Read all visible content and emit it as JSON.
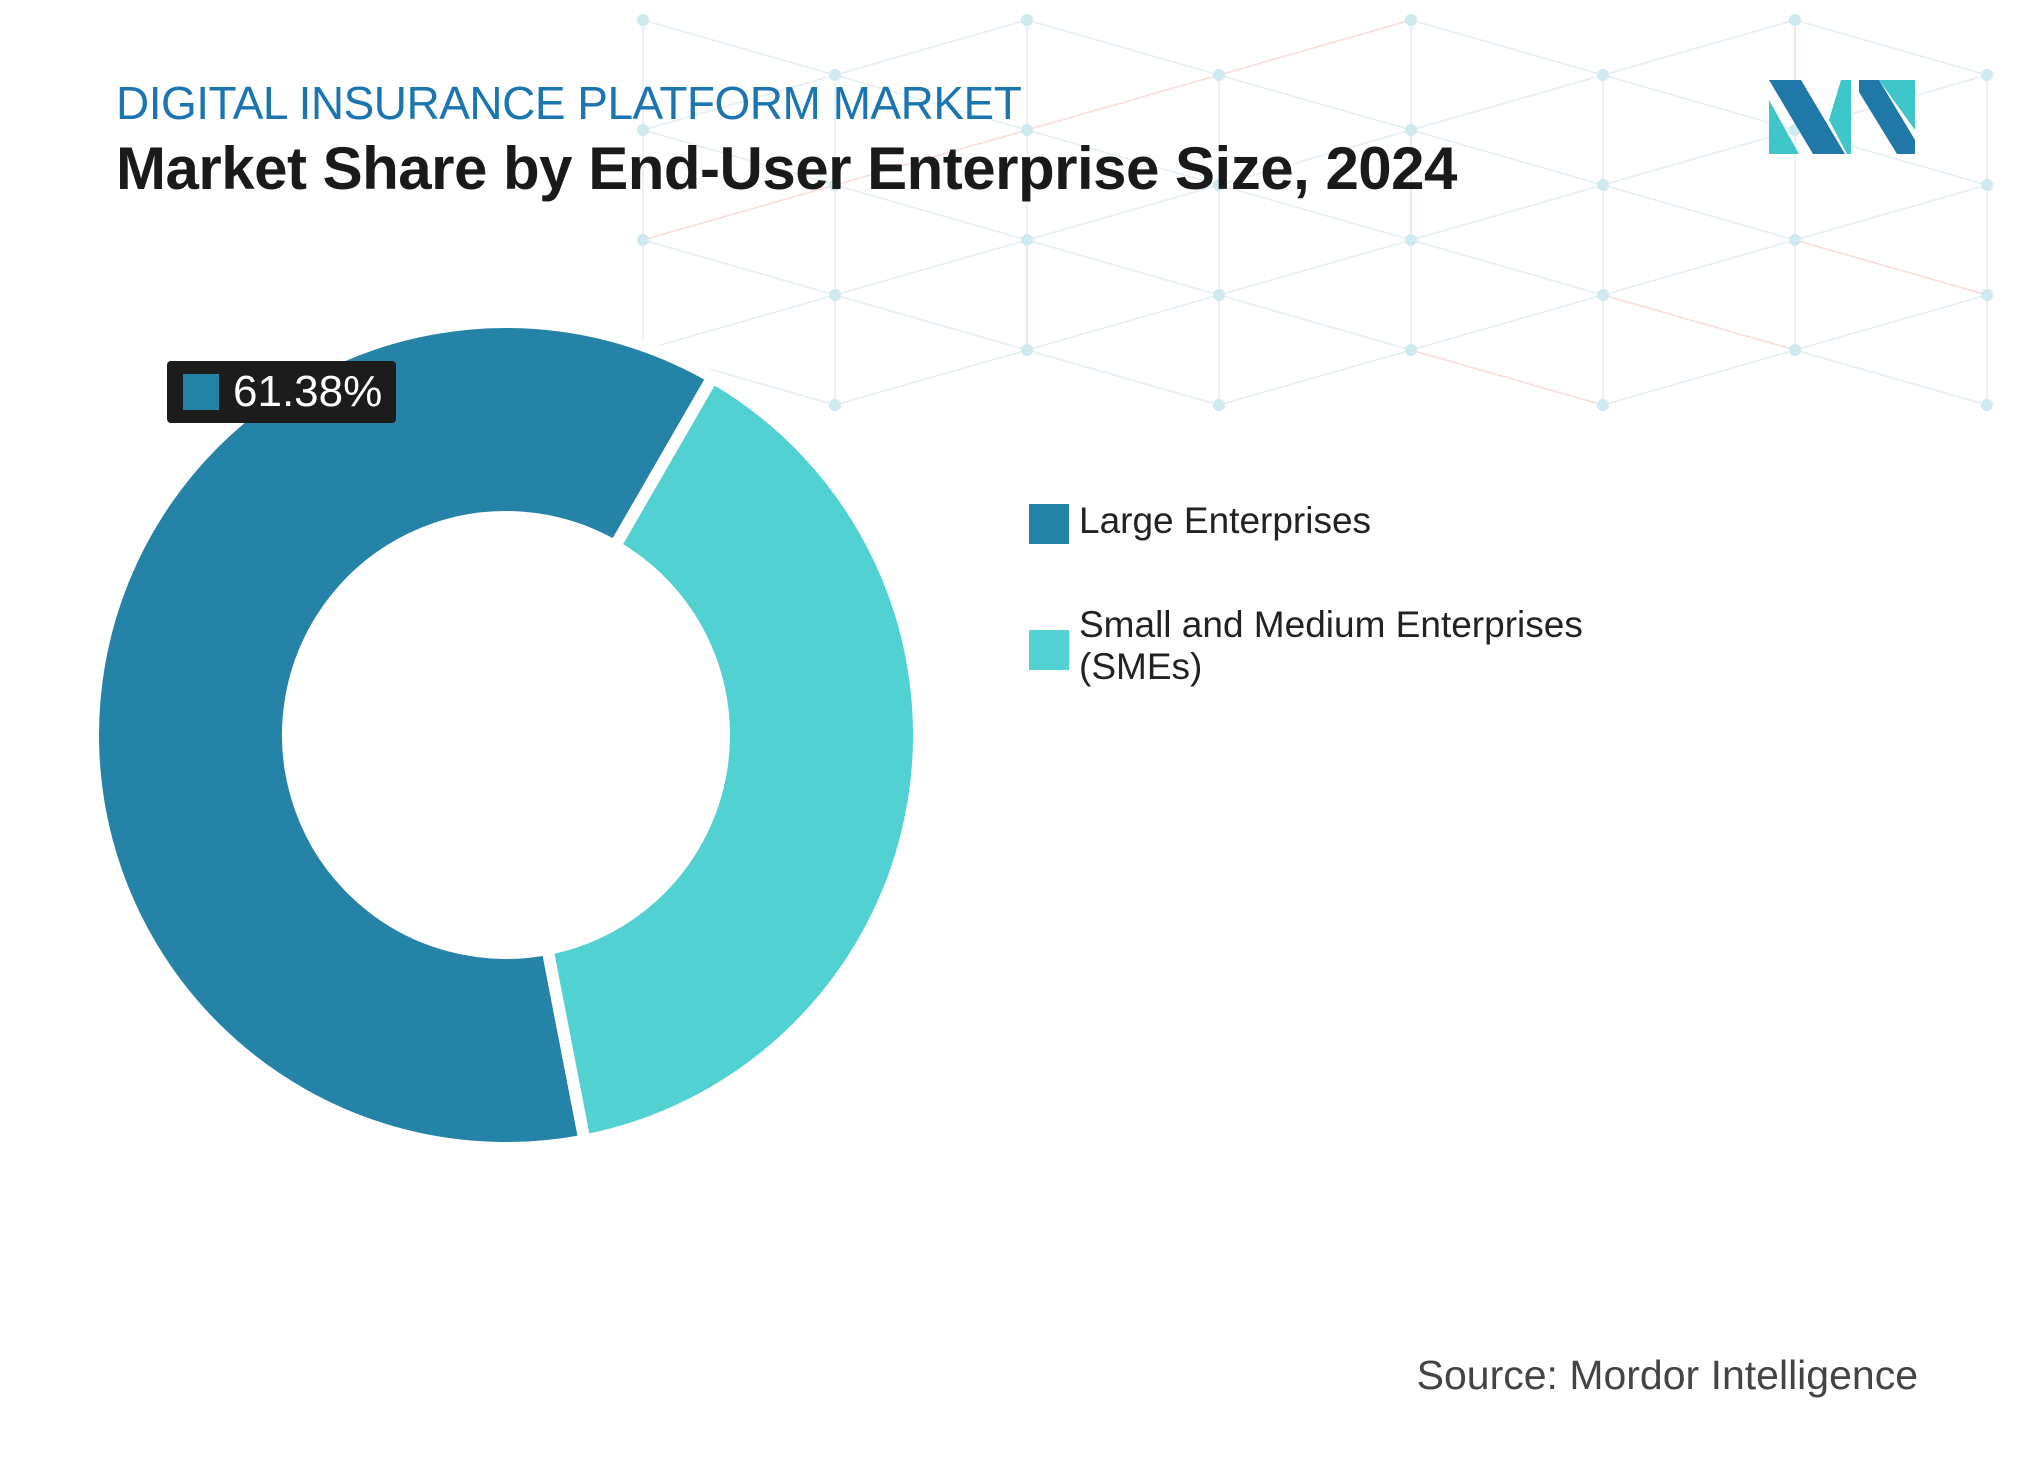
{
  "header": {
    "kicker": "DIGITAL INSURANCE PLATFORM MARKET",
    "title": "Market Share by End-User Enterprise Size, 2024"
  },
  "chart_data": {
    "type": "pie",
    "subtype": "donut",
    "title": "Market Share by End-User Enterprise Size, 2024",
    "categories": [
      "Large Enterprises",
      "Small and Medium Enterprises (SMEs)"
    ],
    "values": [
      61.38,
      38.62
    ],
    "colors": [
      "#2583a8",
      "#52d1d3"
    ],
    "data_labels": [
      {
        "category": "Large Enterprises",
        "text": "61.38%"
      }
    ],
    "legend": "right"
  },
  "legend": {
    "items": [
      {
        "label": "Large Enterprises",
        "color": "#2583a8"
      },
      {
        "label": "Small and Medium Enterprises (SMEs)",
        "color": "#52d1d3"
      }
    ]
  },
  "footer": {
    "source": "Source: Mordor Intelligence"
  },
  "logo": {
    "name": "mordor-intelligence-logo",
    "colors": [
      "#1f78a8",
      "#3fc6c8"
    ]
  }
}
